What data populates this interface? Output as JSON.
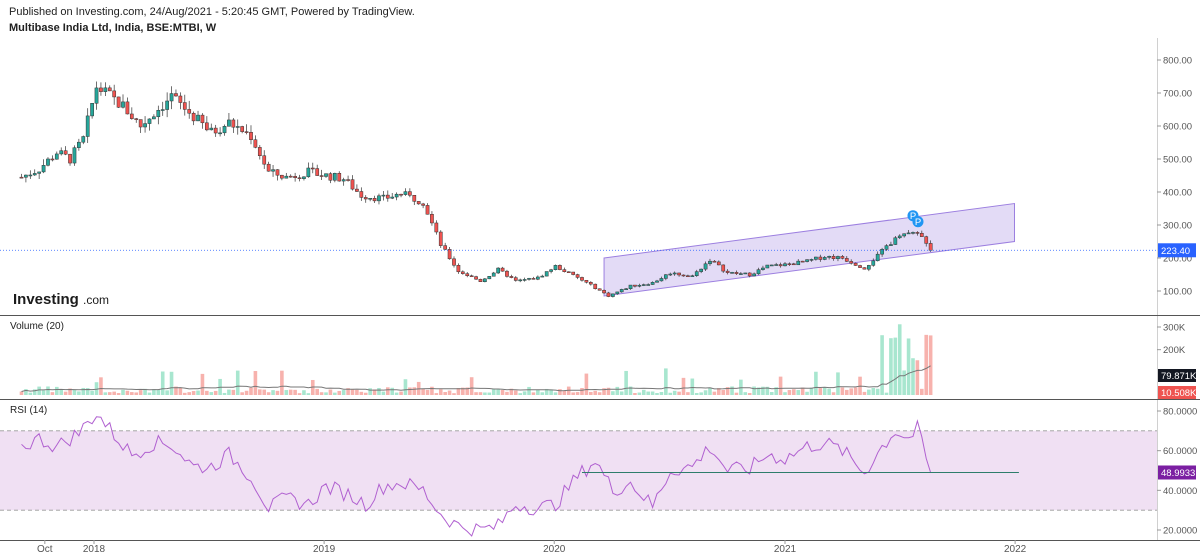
{
  "header": {
    "published": "Published on Investing.com, 24/Aug/2021 - 5:20:45 GMT, Powered by TradingView.",
    "symbol": "Multibase India Ltd, India, BSE:MTBI, W"
  },
  "logo": {
    "main": "Investing",
    "sub": ".com"
  },
  "colors": {
    "up": "#26a69a",
    "down": "#ef5350",
    "up_vol": "#a8e6cf",
    "down_vol": "#f7b2ad",
    "channel": "#9c7fe0",
    "rsi": "#b060d0",
    "rsi_band": "#f0e0f3",
    "price_line": "#2962ff",
    "vol_ma": "#777777",
    "badge": "#2196f3"
  },
  "chart_data": [
    {
      "type": "candlestick",
      "pane": "price",
      "title": "",
      "yticks": [
        100,
        200,
        300,
        400,
        500,
        600,
        700,
        800
      ],
      "ytick_labels": [
        "100.00",
        "200.00",
        "300.00",
        "400.00",
        "500.00",
        "600.00",
        "700.00",
        "800.00"
      ],
      "ylim": [
        40,
        835
      ],
      "last_price": 223.4,
      "last_price_label": "223.40",
      "x_ticks": [
        "Oct",
        "2018",
        "2019",
        "2020",
        "2021",
        "2022"
      ],
      "ohlc_close_path": [
        {
          "date": "2017-09-08",
          "close": 445
        },
        {
          "date": "2017-10-06",
          "close": 470
        },
        {
          "date": "2017-11-03",
          "close": 520
        },
        {
          "date": "2017-11-24",
          "close": 500
        },
        {
          "date": "2017-12-15",
          "close": 560
        },
        {
          "date": "2018-01-05",
          "close": 720
        },
        {
          "date": "2018-01-26",
          "close": 690
        },
        {
          "date": "2018-02-16",
          "close": 660
        },
        {
          "date": "2018-03-16",
          "close": 600
        },
        {
          "date": "2018-04-06",
          "close": 640
        },
        {
          "date": "2018-05-04",
          "close": 690
        },
        {
          "date": "2018-06-01",
          "close": 640
        },
        {
          "date": "2018-07-06",
          "close": 580
        },
        {
          "date": "2018-08-03",
          "close": 610
        },
        {
          "date": "2018-09-07",
          "close": 570
        },
        {
          "date": "2018-10-05",
          "close": 460
        },
        {
          "date": "2018-11-02",
          "close": 445
        },
        {
          "date": "2018-12-07",
          "close": 460
        },
        {
          "date": "2019-01-04",
          "close": 450
        },
        {
          "date": "2019-02-01",
          "close": 440
        },
        {
          "date": "2019-03-01",
          "close": 390
        },
        {
          "date": "2019-04-05",
          "close": 380
        },
        {
          "date": "2019-05-03",
          "close": 395
        },
        {
          "date": "2019-06-07",
          "close": 370
        },
        {
          "date": "2019-07-05",
          "close": 240
        },
        {
          "date": "2019-08-02",
          "close": 160
        },
        {
          "date": "2019-09-06",
          "close": 130
        },
        {
          "date": "2019-10-04",
          "close": 165
        },
        {
          "date": "2019-11-01",
          "close": 130
        },
        {
          "date": "2019-12-06",
          "close": 140
        },
        {
          "date": "2020-01-03",
          "close": 175
        },
        {
          "date": "2020-02-07",
          "close": 140
        },
        {
          "date": "2020-03-06",
          "close": 110
        },
        {
          "date": "2020-03-27",
          "close": 85
        },
        {
          "date": "2020-05-01",
          "close": 115
        },
        {
          "date": "2020-06-05",
          "close": 125
        },
        {
          "date": "2020-07-03",
          "close": 155
        },
        {
          "date": "2020-08-07",
          "close": 145
        },
        {
          "date": "2020-09-04",
          "close": 195
        },
        {
          "date": "2020-10-02",
          "close": 155
        },
        {
          "date": "2020-11-06",
          "close": 150
        },
        {
          "date": "2020-12-04",
          "close": 175
        },
        {
          "date": "2021-01-01",
          "close": 180
        },
        {
          "date": "2021-02-05",
          "close": 190
        },
        {
          "date": "2021-03-05",
          "close": 205
        },
        {
          "date": "2021-04-02",
          "close": 200
        },
        {
          "date": "2021-05-07",
          "close": 170
        },
        {
          "date": "2021-06-04",
          "close": 220
        },
        {
          "date": "2021-07-02",
          "close": 275
        },
        {
          "date": "2021-07-30",
          "close": 270
        },
        {
          "date": "2021-08-13",
          "close": 250
        },
        {
          "date": "2021-08-20",
          "close": 223.4
        }
      ],
      "channel": {
        "lower": [
          {
            "date": "2020-03-20",
            "value": 85
          },
          {
            "date": "2021-12-31",
            "value": 250
          }
        ],
        "upper": [
          {
            "date": "2020-03-20",
            "value": 200
          },
          {
            "date": "2021-12-31",
            "value": 365
          }
        ]
      },
      "annotations": [
        "P",
        "P"
      ]
    },
    {
      "type": "bar",
      "pane": "volume",
      "title": "Volume (20)",
      "yticks": [
        200000,
        300000
      ],
      "ytick_labels": [
        "200K",
        "300K"
      ],
      "ylim": [
        0,
        330000
      ],
      "last_labels": [
        "79.871K",
        "10.508K"
      ]
    },
    {
      "type": "line",
      "pane": "rsi",
      "title": "RSI (14)",
      "yticks": [
        20,
        40,
        60,
        80
      ],
      "ytick_labels": [
        "20.0000",
        "40.0000",
        "60.0000",
        "80.0000"
      ],
      "ylim": [
        15,
        85
      ],
      "band": [
        30,
        70
      ],
      "last_value": 48.9933,
      "last_label": "48.9933",
      "points": [
        {
          "date": "2017-09-08",
          "value": 62
        },
        {
          "date": "2017-10-06",
          "value": 66
        },
        {
          "date": "2017-11-03",
          "value": 62
        },
        {
          "date": "2017-12-08",
          "value": 69
        },
        {
          "date": "2018-01-05",
          "value": 79
        },
        {
          "date": "2018-02-02",
          "value": 68
        },
        {
          "date": "2018-03-02",
          "value": 58
        },
        {
          "date": "2018-04-06",
          "value": 64
        },
        {
          "date": "2018-05-04",
          "value": 63
        },
        {
          "date": "2018-06-08",
          "value": 52
        },
        {
          "date": "2018-07-06",
          "value": 52
        },
        {
          "date": "2018-08-03",
          "value": 58
        },
        {
          "date": "2018-09-07",
          "value": 47
        },
        {
          "date": "2018-10-05",
          "value": 31
        },
        {
          "date": "2018-11-02",
          "value": 36
        },
        {
          "date": "2018-12-07",
          "value": 33
        },
        {
          "date": "2019-01-04",
          "value": 42
        },
        {
          "date": "2019-02-08",
          "value": 38
        },
        {
          "date": "2019-03-08",
          "value": 33
        },
        {
          "date": "2019-04-05",
          "value": 42
        },
        {
          "date": "2019-05-03",
          "value": 44
        },
        {
          "date": "2019-06-07",
          "value": 40
        },
        {
          "date": "2019-07-05",
          "value": 28
        },
        {
          "date": "2019-08-02",
          "value": 22
        },
        {
          "date": "2019-09-06",
          "value": 20
        },
        {
          "date": "2019-10-04",
          "value": 22
        },
        {
          "date": "2019-11-01",
          "value": 33
        },
        {
          "date": "2019-12-06",
          "value": 31
        },
        {
          "date": "2020-01-03",
          "value": 33
        },
        {
          "date": "2020-02-07",
          "value": 47
        },
        {
          "date": "2020-03-06",
          "value": 55
        },
        {
          "date": "2020-04-03",
          "value": 40
        },
        {
          "date": "2020-05-01",
          "value": 44
        },
        {
          "date": "2020-06-05",
          "value": 32
        },
        {
          "date": "2020-07-03",
          "value": 50
        },
        {
          "date": "2020-08-07",
          "value": 52
        },
        {
          "date": "2020-09-04",
          "value": 62
        },
        {
          "date": "2020-10-02",
          "value": 50
        },
        {
          "date": "2020-11-06",
          "value": 51
        },
        {
          "date": "2020-12-04",
          "value": 58
        },
        {
          "date": "2021-01-01",
          "value": 56
        },
        {
          "date": "2021-02-05",
          "value": 62
        },
        {
          "date": "2021-03-05",
          "value": 64
        },
        {
          "date": "2021-04-02",
          "value": 60
        },
        {
          "date": "2021-05-07",
          "value": 49
        },
        {
          "date": "2021-06-04",
          "value": 62
        },
        {
          "date": "2021-06-25",
          "value": 70
        },
        {
          "date": "2021-07-16",
          "value": 66
        },
        {
          "date": "2021-07-30",
          "value": 71
        },
        {
          "date": "2021-08-13",
          "value": 56
        },
        {
          "date": "2021-08-20",
          "value": 48.99
        }
      ],
      "support_line": [
        {
          "date": "2020-02-14",
          "value": 49
        },
        {
          "date": "2022-01-07",
          "value": 49
        }
      ]
    }
  ]
}
